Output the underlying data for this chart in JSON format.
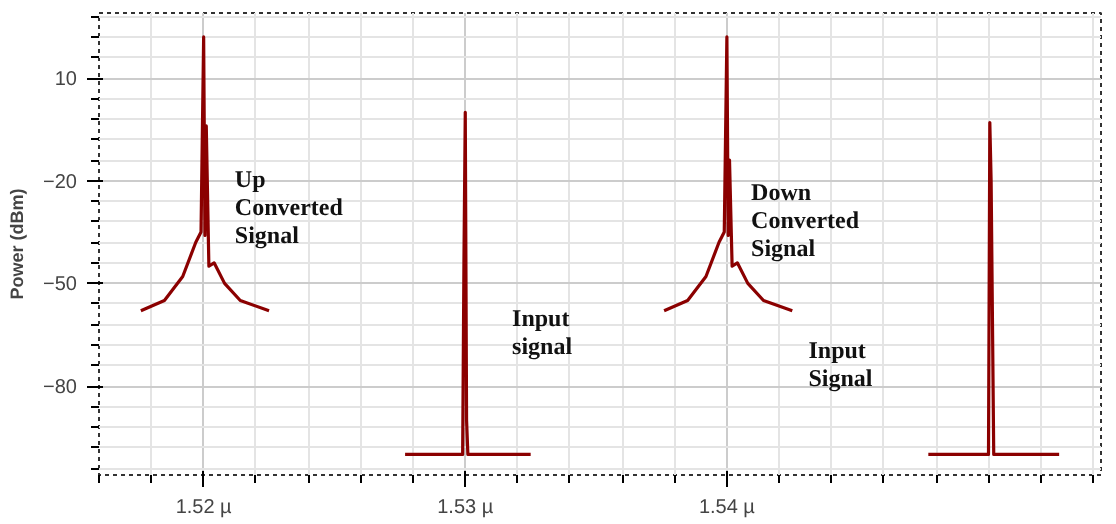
{
  "chart_data": {
    "type": "line",
    "ylabel": "Power (dBm)",
    "xlim": [
      1.516,
      1.5543
    ],
    "ylim": [
      -106,
      29
    ],
    "xticks": [
      {
        "value": 1.52,
        "label": "1.52 µ"
      },
      {
        "value": 1.53,
        "label": "1.53 µ"
      },
      {
        "value": 1.54,
        "label": "1.54 µ"
      }
    ],
    "yticks": [
      -80,
      -50,
      -20,
      10
    ],
    "grid": true,
    "marker": "none",
    "line_style": "solid",
    "x": [
      1.5176,
      1.5185,
      1.5192,
      1.5197,
      1.5199,
      1.52,
      1.52005,
      1.5201,
      1.5202,
      1.5204,
      1.5208,
      1.5214,
      1.5225,
      1.526,
      1.5277,
      1.5299,
      1.52995,
      1.53,
      1.53005,
      1.5301,
      1.5325,
      1.535,
      1.5376,
      1.5385,
      1.5392,
      1.5397,
      1.5399,
      1.54,
      1.54005,
      1.5401,
      1.5402,
      1.5404,
      1.5408,
      1.5414,
      1.5425,
      1.546,
      1.5477,
      1.55,
      1.55005,
      1.5501,
      1.55015,
      1.5502,
      1.5527
    ],
    "series": [
      {
        "color": "#8b0000",
        "values": [
          -58,
          -55,
          -48,
          -38,
          -35,
          22,
          -36,
          -4,
          -45,
          -44,
          -50,
          -55,
          -58,
          null,
          -100,
          -100,
          -43,
          0,
          -90,
          -100,
          -100,
          null,
          -58,
          -55,
          -48,
          -38,
          -35,
          22,
          -36,
          -14,
          -45,
          -44,
          -50,
          -55,
          -58,
          null,
          -100,
          -100,
          -3,
          -20,
          -60,
          -100,
          -100
        ]
      }
    ],
    "annotations": [
      "Up\nConverted\nSignal",
      "Input\nsignal",
      "Down\nConverted\nSignal",
      "Input\nSignal"
    ]
  }
}
